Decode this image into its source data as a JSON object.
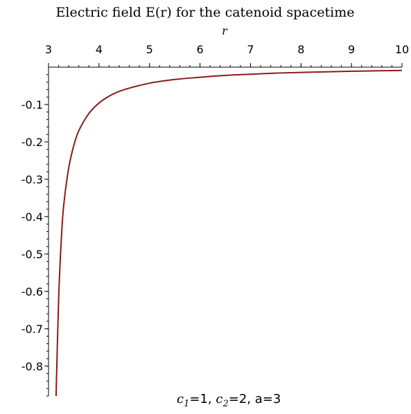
{
  "chart_data": {
    "type": "line",
    "title": "Electric field E(r) for the catenoid spacetime",
    "xlabel": "r",
    "ylabel": "",
    "xlim": [
      3,
      10
    ],
    "ylim": [
      -0.88,
      0
    ],
    "x_axis_position": "top",
    "grid": false,
    "x_ticks": [
      3,
      4,
      5,
      6,
      7,
      8,
      9,
      10
    ],
    "x_tick_labels": [
      "3",
      "4",
      "5",
      "6",
      "7",
      "8",
      "9",
      "10"
    ],
    "y_ticks": [
      -0.1,
      -0.2,
      -0.3,
      -0.4,
      -0.5,
      -0.6,
      -0.7,
      -0.8
    ],
    "y_tick_labels": [
      "-0.1",
      "-0.2",
      "-0.3",
      "-0.4",
      "-0.5",
      "-0.6",
      "-0.7",
      "-0.8"
    ],
    "series": [
      {
        "color": "#8b1a1a",
        "x": [
          3.15,
          3.2,
          3.25,
          3.3,
          3.4,
          3.5,
          3.6,
          3.8,
          4.0,
          4.25,
          4.5,
          5.0,
          5.5,
          6.0,
          6.5,
          7.0,
          7.5,
          8.0,
          8.5,
          9.0,
          9.5,
          10.0
        ],
        "y": [
          -0.88,
          -0.62,
          -0.47,
          -0.37,
          -0.27,
          -0.21,
          -0.17,
          -0.124,
          -0.096,
          -0.074,
          -0.06,
          -0.043,
          -0.033,
          -0.027,
          -0.022,
          -0.019,
          -0.016,
          -0.014,
          -0.0125,
          -0.011,
          -0.0099,
          -0.0089
        ]
      }
    ],
    "annotation": {
      "c1_symbol": "c",
      "c1_sub": "1",
      "c1_value": "=1, ",
      "c2_symbol": "c",
      "c2_sub": "2",
      "c2_value": "=2, a=3"
    }
  }
}
